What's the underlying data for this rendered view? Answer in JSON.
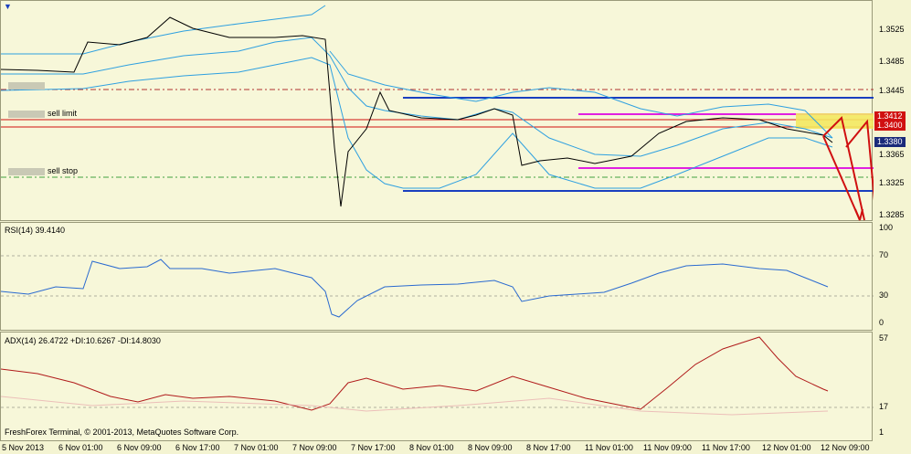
{
  "menu": {
    "arrow": "▼"
  },
  "main": {
    "price_ticks": [
      "1.3525",
      "1.3485",
      "1.3445",
      "1.3412",
      "1.3400",
      "1.3380",
      "1.3365",
      "1.3325",
      "1.3285"
    ],
    "labels": {
      "sell_limit": "sell limit",
      "sell_stop": "sell stop"
    },
    "highlights": {
      "p1": "1.3412",
      "p2": "1.3400",
      "p3": "1.3380"
    }
  },
  "rsi": {
    "title": "RSI(14) 39.4140",
    "ticks": [
      "100",
      "70",
      "30",
      "0"
    ]
  },
  "adx": {
    "title": "ADX(14) 26.4722 +DI:10.6267 -DI:14.8030",
    "ticks": [
      "57",
      "17",
      "1"
    ],
    "copyright": "FreshForex Terminal, © 2001-2013, MetaQuotes Software Corp."
  },
  "xaxis": [
    "5 Nov 2013",
    "6 Nov 01:00",
    "6 Nov 09:00",
    "6 Nov 17:00",
    "7 Nov 01:00",
    "7 Nov 09:00",
    "7 Nov 17:00",
    "8 Nov 01:00",
    "8 Nov 09:00",
    "8 Nov 17:00",
    "11 Nov 01:00",
    "11 Nov 09:00",
    "11 Nov 17:00",
    "12 Nov 01:00",
    "12 Nov 09:00"
  ],
  "colors": {
    "bg": "#f7f7d9",
    "blue": "#1a3fbf",
    "magenta": "#e020e0",
    "red": "#d01010",
    "band": "#2ea0e0",
    "rsi": "#2a6ad0",
    "adx": "#b01a1a"
  }
}
